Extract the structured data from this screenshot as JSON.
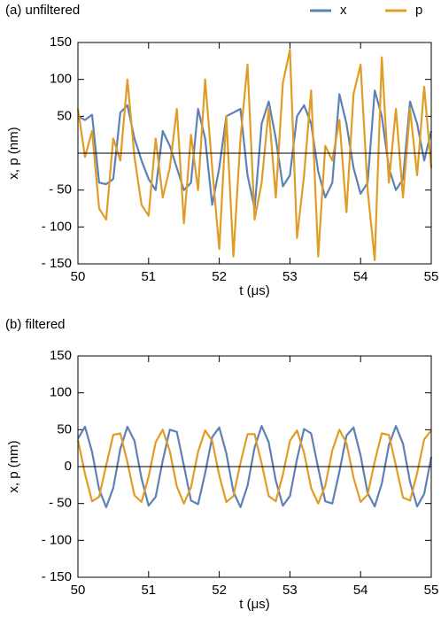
{
  "chart_data": [
    {
      "type": "line",
      "title": "(a) unfiltered",
      "xlabel": "t (μs)",
      "ylabel": "x, p (nm)",
      "x": [
        50,
        50.1,
        50.2,
        50.3,
        50.4,
        50.5,
        50.6,
        50.7,
        50.8,
        50.9,
        51,
        51.1,
        51.2,
        51.3,
        51.4,
        51.5,
        51.6,
        51.7,
        51.8,
        51.9,
        52,
        52.1,
        52.2,
        52.3,
        52.4,
        52.5,
        52.6,
        52.7,
        52.8,
        52.9,
        53,
        53.1,
        53.2,
        53.3,
        53.4,
        53.5,
        53.6,
        53.7,
        53.8,
        53.9,
        54,
        54.1,
        54.2,
        54.3,
        54.4,
        54.5,
        54.6,
        54.7,
        54.8,
        54.9,
        55
      ],
      "series": [
        {
          "name": "x",
          "color": "#5e81b5",
          "values": [
            50,
            45,
            52,
            -40,
            -42,
            -35,
            55,
            65,
            20,
            -10,
            -35,
            -50,
            30,
            10,
            -20,
            -50,
            -40,
            60,
            20,
            -70,
            -20,
            50,
            55,
            60,
            -30,
            -75,
            40,
            70,
            20,
            -45,
            -30,
            50,
            65,
            40,
            -25,
            -60,
            -40,
            80,
            40,
            -20,
            -55,
            -40,
            85,
            50,
            -20,
            -50,
            -35,
            70,
            40,
            -10,
            30
          ]
        },
        {
          "name": "p",
          "color": "#e19c24",
          "values": [
            60,
            -5,
            30,
            -75,
            -90,
            20,
            -10,
            100,
            -5,
            -70,
            -85,
            20,
            -60,
            -20,
            60,
            -95,
            25,
            -50,
            100,
            -20,
            -130,
            50,
            -140,
            20,
            120,
            -90,
            -40,
            60,
            -60,
            95,
            140,
            -115,
            -30,
            85,
            -140,
            10,
            -10,
            45,
            -80,
            80,
            120,
            -50,
            -145,
            130,
            -40,
            60,
            -60,
            60,
            -30,
            90,
            -20
          ]
        }
      ],
      "xlim": [
        50,
        55
      ],
      "xticks": [
        50,
        51,
        52,
        53,
        54,
        55
      ],
      "ylim": [
        -150,
        150
      ],
      "yticks": [
        {
          "value": -150,
          "label": "- 150"
        },
        {
          "value": -100,
          "label": "- 100"
        },
        {
          "value": -50,
          "label": "- 50"
        },
        50,
        100,
        150
      ],
      "zero_line": true,
      "legend": "top-right"
    },
    {
      "type": "line",
      "title": "(b) filtered",
      "xlabel": "t (μs)",
      "ylabel": "x, p (nm)",
      "x": [
        50,
        50.1,
        50.2,
        50.3,
        50.4,
        50.5,
        50.6,
        50.7,
        50.8,
        50.9,
        51,
        51.1,
        51.2,
        51.3,
        51.4,
        51.5,
        51.6,
        51.7,
        51.8,
        51.9,
        52,
        52.1,
        52.2,
        52.3,
        52.4,
        52.5,
        52.6,
        52.7,
        52.8,
        52.9,
        53,
        53.1,
        53.2,
        53.3,
        53.4,
        53.5,
        53.6,
        53.7,
        53.8,
        53.9,
        54,
        54.1,
        54.2,
        54.3,
        54.4,
        54.5,
        54.6,
        54.7,
        54.8,
        54.9,
        55
      ],
      "series": [
        {
          "color": "#5e81b5",
          "values": [
            38,
            54,
            20,
            -31,
            -55,
            -29,
            24,
            54,
            35,
            -16,
            -53,
            -41,
            8,
            50,
            47,
            1,
            -46,
            -51,
            -9,
            40,
            53,
            18,
            -34,
            -55,
            -26,
            26,
            55,
            33,
            -19,
            -53,
            -40,
            10,
            51,
            45,
            -2,
            -47,
            -50,
            -7,
            42,
            53,
            15,
            -36,
            -54,
            -23,
            29,
            55,
            31,
            -21,
            -54,
            -37,
            13
          ]
        },
        {
          "color": "#e19c24",
          "values": [
            36,
            -10,
            -47,
            -41,
            2,
            43,
            45,
            6,
            -39,
            -48,
            -14,
            33,
            50,
            21,
            -27,
            -50,
            -28,
            20,
            49,
            35,
            -12,
            -48,
            -40,
            5,
            44,
            44,
            4,
            -40,
            -47,
            -11,
            35,
            49,
            19,
            -29,
            -50,
            -26,
            22,
            50,
            32,
            -15,
            -48,
            -38,
            7,
            45,
            43,
            1,
            -42,
            -46,
            -9,
            37,
            49
          ]
        }
      ],
      "xlim": [
        50,
        55
      ],
      "xticks": [
        50,
        51,
        52,
        53,
        54,
        55
      ],
      "ylim": [
        -150,
        150
      ],
      "yticks": [
        {
          "value": -150,
          "label": "- 150"
        },
        {
          "value": -100,
          "label": "- 100"
        },
        {
          "value": -50,
          "label": "- 50"
        },
        0,
        50,
        100,
        150
      ],
      "zero_line": true
    }
  ]
}
